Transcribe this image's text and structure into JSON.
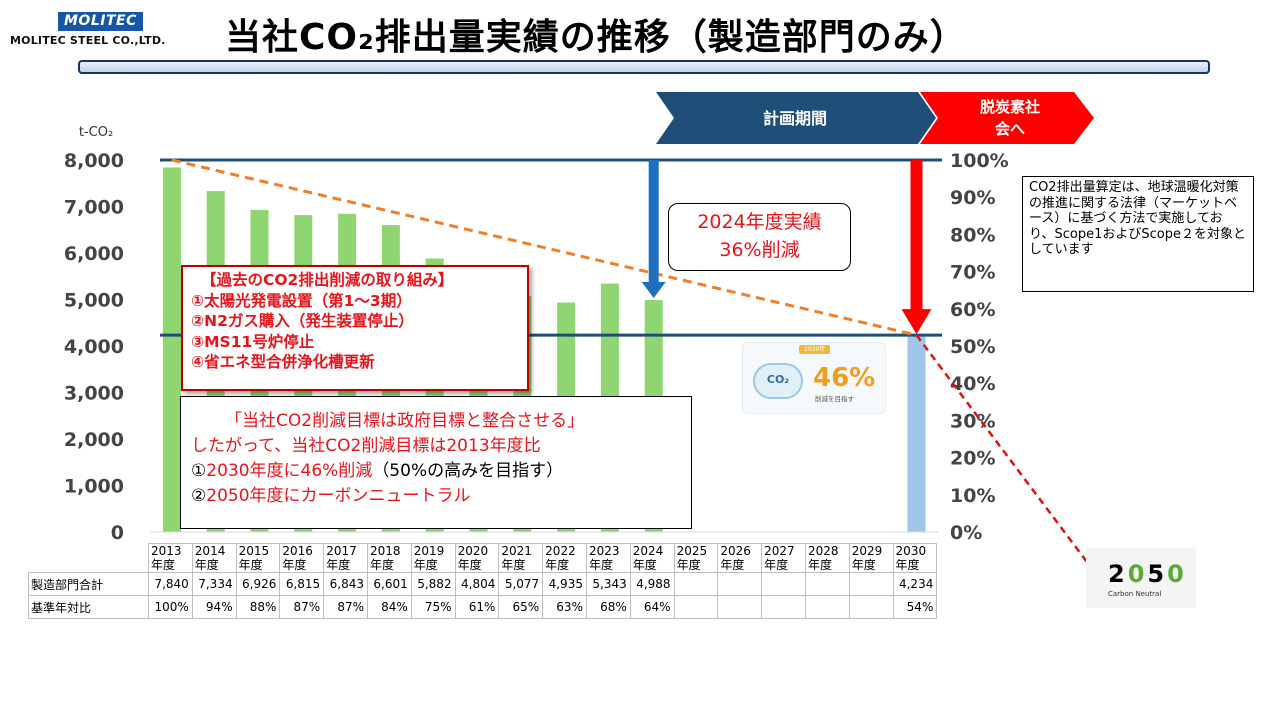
{
  "header": {
    "logo_mark": "MOLITEC",
    "company": "MOLITEC STEEL CO.,LTD.",
    "title": "当社CO₂排出量実績の推移（製造部門のみ）"
  },
  "banners": {
    "plan_period": "計画期間",
    "decarbon": "脱炭素社会へ"
  },
  "chart_data": {
    "type": "bar",
    "categories": [
      "2013",
      "2014",
      "2015",
      "2016",
      "2017",
      "2018",
      "2019",
      "2020",
      "2021",
      "2022",
      "2023",
      "2024",
      "2025",
      "2026",
      "2027",
      "2028",
      "2029",
      "2030"
    ],
    "series": [
      {
        "values": [
          7840,
          7334,
          6926,
          6815,
          6843,
          6601,
          5882,
          4804,
          5077,
          4935,
          5343,
          4988,
          null,
          null,
          null,
          null,
          null,
          4234
        ]
      }
    ],
    "ylabel": "t-CO₂",
    "ylim": [
      0,
      8000
    ],
    "y_ticks": [
      "8,000",
      "7,000",
      "6,000",
      "5,000",
      "4,000",
      "3,000",
      "2,000",
      "1,000",
      "0"
    ],
    "y2_ticks": [
      "100%",
      "90%",
      "80%",
      "70%",
      "60%",
      "50%",
      "40%",
      "30%",
      "20%",
      "10%",
      "0%"
    ],
    "y2lim": [
      0,
      100
    ],
    "reference_lines": [
      8000,
      4234
    ],
    "trend_line": {
      "from": [
        "2013",
        8000
      ],
      "to": [
        "2030",
        4234
      ],
      "extends_to": "2050"
    },
    "bar_color": "#8fd672",
    "target_bar_color": "#9fc5e8",
    "grid": false
  },
  "table": {
    "year_suffix": "年度",
    "rows": [
      {
        "label": "製造部門合計",
        "values": [
          "7,840",
          "7,334",
          "6,926",
          "6,815",
          "6,843",
          "6,601",
          "5,882",
          "4,804",
          "5,077",
          "4,935",
          "5,343",
          "4,988",
          "",
          "",
          "",
          "",
          "",
          "4,234"
        ]
      },
      {
        "label": "基準年対比",
        "values": [
          "100%",
          "94%",
          "88%",
          "87%",
          "87%",
          "84%",
          "75%",
          "61%",
          "65%",
          "63%",
          "68%",
          "64%",
          "",
          "",
          "",
          "",
          "",
          "54%"
        ]
      }
    ]
  },
  "note": "CO2排出量算定は、地球温暖化対策の推進に関する法律（マーケットベース）に基づく方法で実施しており、Scope1およびScope２を対象としています",
  "result_box": {
    "line1": "2024年度実績",
    "line2": "36%削減"
  },
  "efforts": {
    "heading": "【過去のCO2排出削減の取り組み】",
    "items": [
      "①太陽光発電設置（第1～3期）",
      "②N2ガス購入（発生装置停止）",
      "③MS11号炉停止",
      "④省エネ型合併浄化槽更新"
    ]
  },
  "target_box": {
    "line1": "「当社CO2削減目標は政府目標と整合させる」",
    "line2": "したがって、当社CO2削減目標は2013年度比",
    "line3_prefix": "①",
    "line3_red": "2030年度に46%削減",
    "line3_suffix": "（50%の高みを目指す）",
    "line4_prefix": "②",
    "line4_red": "2050年度にカーボンニュートラル"
  },
  "badge": {
    "tag": "2030年",
    "cloud": "CO₂",
    "pct": "46%",
    "sub": "削減を目指す"
  },
  "cn_logo": {
    "big_a": "2",
    "big_b": "0",
    "big_c": "5",
    "big_d": "0",
    "small": "Carbon Neutral"
  },
  "colors": {
    "navy": "#1f4e79",
    "red": "#e8141c",
    "arrow_blue": "#1f6fbf",
    "dash_orange": "#f07f2a"
  }
}
